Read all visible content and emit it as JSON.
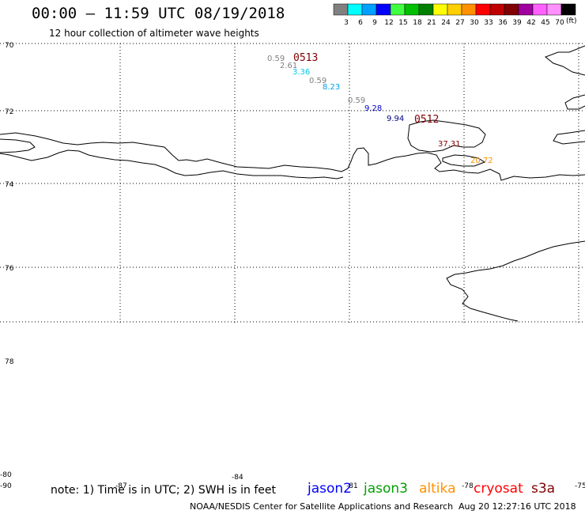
{
  "header": {
    "title": "00:00 – 11:59 UTC 08/19/2018",
    "subtitle": "12 hour collection of altimeter wave heights"
  },
  "legend": {
    "unit": "(ft)",
    "bins": [
      {
        "label": "3",
        "color": "#808080"
      },
      {
        "label": "6",
        "color": "#00ffff"
      },
      {
        "label": "9",
        "color": "#00a0ff"
      },
      {
        "label": "12",
        "color": "#0000ff"
      },
      {
        "label": "15",
        "color": "#40ff40"
      },
      {
        "label": "18",
        "color": "#00c000"
      },
      {
        "label": "21",
        "color": "#008000"
      },
      {
        "label": "24",
        "color": "#ffff00"
      },
      {
        "label": "27",
        "color": "#ffd000"
      },
      {
        "label": "30",
        "color": "#ff9000"
      },
      {
        "label": "33",
        "color": "#ff0000"
      },
      {
        "label": "36",
        "color": "#c00000"
      },
      {
        "label": "39",
        "color": "#800000"
      },
      {
        "label": "42",
        "color": "#a000a0"
      },
      {
        "label": "45",
        "color": "#ff60ff"
      },
      {
        "label": "70",
        "color": "#ff90ff"
      },
      {
        "label": "",
        "color": "#000000"
      }
    ]
  },
  "lat_labels": [
    "70",
    "72",
    "74",
    "76",
    "78",
    "-80",
    "-90"
  ],
  "lon_labels": [
    "-87",
    "-84",
    "-81",
    "-78",
    "-75"
  ],
  "observations": [
    {
      "text": "0.59",
      "color": "#808080"
    },
    {
      "text": "2.61",
      "color": "#808080"
    },
    {
      "text": "3.36",
      "color": "#00c8e8"
    },
    {
      "text": "0.59",
      "color": "#808080"
    },
    {
      "text": "8.23",
      "color": "#00a0e8"
    },
    {
      "text": "0.59",
      "color": "#808080"
    },
    {
      "text": "9.28",
      "color": "#0000c0"
    },
    {
      "text": "9.94",
      "color": "#000080"
    },
    {
      "text": "37.31",
      "color": "#800000"
    },
    {
      "text": "20.72",
      "color": "#ff9000"
    }
  ],
  "times": [
    {
      "text": "0513",
      "color": "#800000"
    },
    {
      "text": "0512",
      "color": "#800000"
    }
  ],
  "footer": {
    "note": "note: 1) Time is in UTC; 2) SWH is in feet",
    "satellites": [
      {
        "name": "jason2",
        "color": "#0000ff"
      },
      {
        "name": "jason3",
        "color": "#00a000"
      },
      {
        "name": "altika",
        "color": "#ff9000"
      },
      {
        "name": "cryosat",
        "color": "#ff0000"
      },
      {
        "name": "s3a",
        "color": "#800000"
      }
    ],
    "credit": "NOAA/NESDIS Center for Satellite Applications and Research",
    "timestamp": "Aug 20 12:27:16 UTC 2018"
  }
}
